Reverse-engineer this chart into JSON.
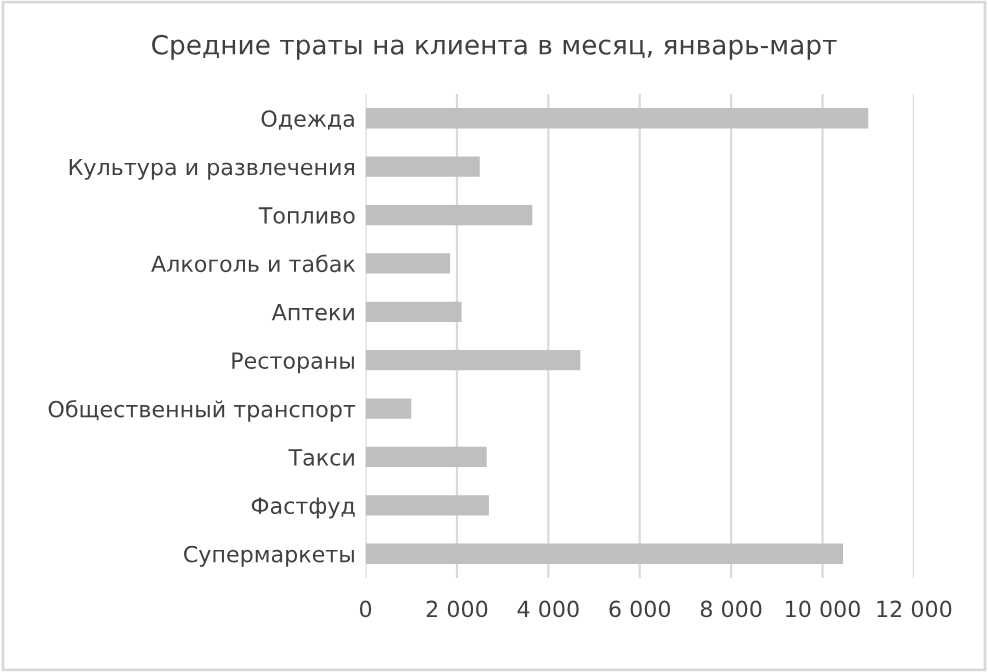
{
  "chart_data": {
    "type": "bar",
    "orientation": "horizontal",
    "title": "Средние траты на клиента в месяц, январь-март",
    "categories": [
      "Одежда",
      "Культура и развлечения",
      "Топливо",
      "Алкоголь и табак",
      "Аптеки",
      "Рестораны",
      "Общественный транспорт",
      "Такси",
      "Фастфуд",
      "Супермаркеты"
    ],
    "values": [
      11000,
      2500,
      3650,
      1850,
      2100,
      4700,
      1000,
      2650,
      2700,
      10450
    ],
    "color": "#bfbfbf",
    "xlim": [
      0,
      12000
    ],
    "xticks": [
      0,
      {
        "value": 2000,
        "label": "2 000"
      },
      {
        "value": 4000,
        "label": "4 000"
      },
      {
        "value": 6000,
        "label": "6 000"
      },
      {
        "value": 8000,
        "label": "8 000"
      },
      {
        "value": 10000,
        "label": "10 000"
      },
      {
        "value": 12000,
        "label": "12 000"
      }
    ],
    "grid": "x"
  }
}
